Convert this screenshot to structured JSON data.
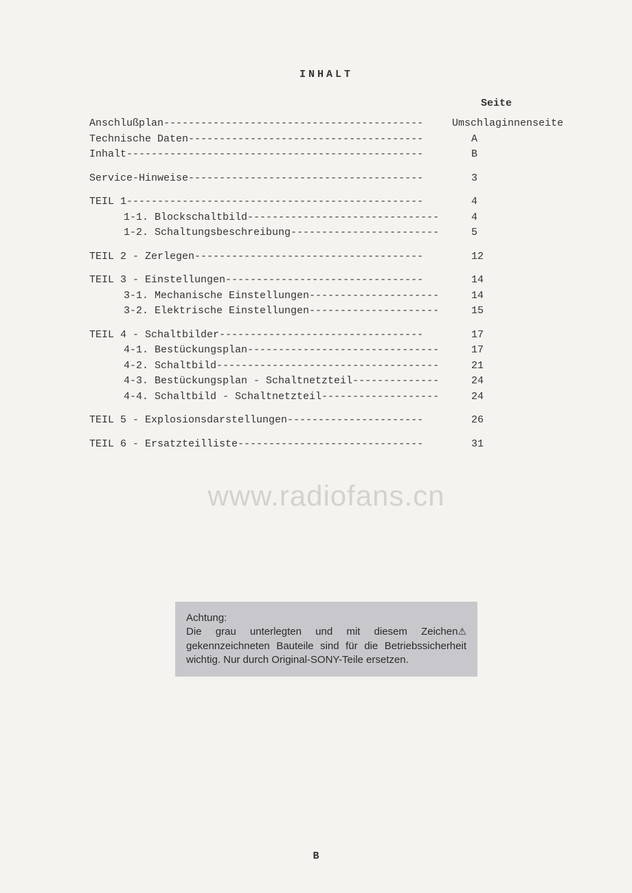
{
  "title": "INHALT",
  "page_header": "Seite",
  "toc": [
    {
      "items": [
        {
          "label": "Anschlußplan ",
          "page": "Umschlaginnenseite",
          "indent": false,
          "dashCount": 42
        },
        {
          "label": "Technische Daten ",
          "page": " A",
          "indent": false,
          "dashCount": 38
        },
        {
          "label": "Inhalt ",
          "page": " B",
          "indent": false,
          "dashCount": 48
        }
      ]
    },
    {
      "items": [
        {
          "label": "Service-Hinweise ",
          "page": " 3",
          "indent": false,
          "dashCount": 38
        }
      ]
    },
    {
      "items": [
        {
          "label": "TEIL 1 ",
          "page": " 4",
          "indent": false,
          "dashCount": 48
        },
        {
          "label": "1-1. Blockschaltbild ",
          "page": " 4",
          "indent": true,
          "dashCount": 31
        },
        {
          "label": "1-2. Schaltungsbeschreibung ",
          "page": " 5",
          "indent": true,
          "dashCount": 24
        }
      ]
    },
    {
      "items": [
        {
          "label": "TEIL 2 - Zerlegen ",
          "page": "12",
          "indent": false,
          "dashCount": 37
        }
      ]
    },
    {
      "items": [
        {
          "label": "TEIL 3 - Einstellungen ",
          "page": "14",
          "indent": false,
          "dashCount": 32
        },
        {
          "label": "3-1. Mechanische Einstellungen ",
          "page": "14",
          "indent": true,
          "dashCount": 21
        },
        {
          "label": "3-2. Elektrische Einstellungen ",
          "page": "15",
          "indent": true,
          "dashCount": 21
        }
      ]
    },
    {
      "items": [
        {
          "label": "TEIL 4 - Schaltbilder ",
          "page": "17",
          "indent": false,
          "dashCount": 33
        },
        {
          "label": "4-1. Bestückungsplan ",
          "page": "17",
          "indent": true,
          "dashCount": 31
        },
        {
          "label": "4-2. Schaltbild ",
          "page": "21",
          "indent": true,
          "dashCount": 36
        },
        {
          "label": "4-3. Bestückungsplan - Schaltnetzteil ",
          "page": "24",
          "indent": true,
          "dashCount": 14
        },
        {
          "label": "4-4. Schaltbild - Schaltnetzteil ",
          "page": "24",
          "indent": true,
          "dashCount": 19
        }
      ]
    },
    {
      "items": [
        {
          "label": "TEIL 5 - Explosionsdarstellungen ",
          "page": "26",
          "indent": false,
          "dashCount": 22
        }
      ]
    },
    {
      "items": [
        {
          "label": "TEIL 6 - Ersatzteilliste ",
          "page": "31",
          "indent": false,
          "dashCount": 30
        }
      ]
    }
  ],
  "watermark": "www.radiofans.cn",
  "notice": {
    "title": "Achtung:",
    "body_prefix": "Die grau unterlegten und mit diesem Zeichen",
    "body_suffix": "gekennzeichneten Bauteile sind für die Betriebssicherheit wichtig. Nur durch Original-SONY-Teile ersetzen.",
    "symbol": "⚠"
  },
  "page_number": "B"
}
